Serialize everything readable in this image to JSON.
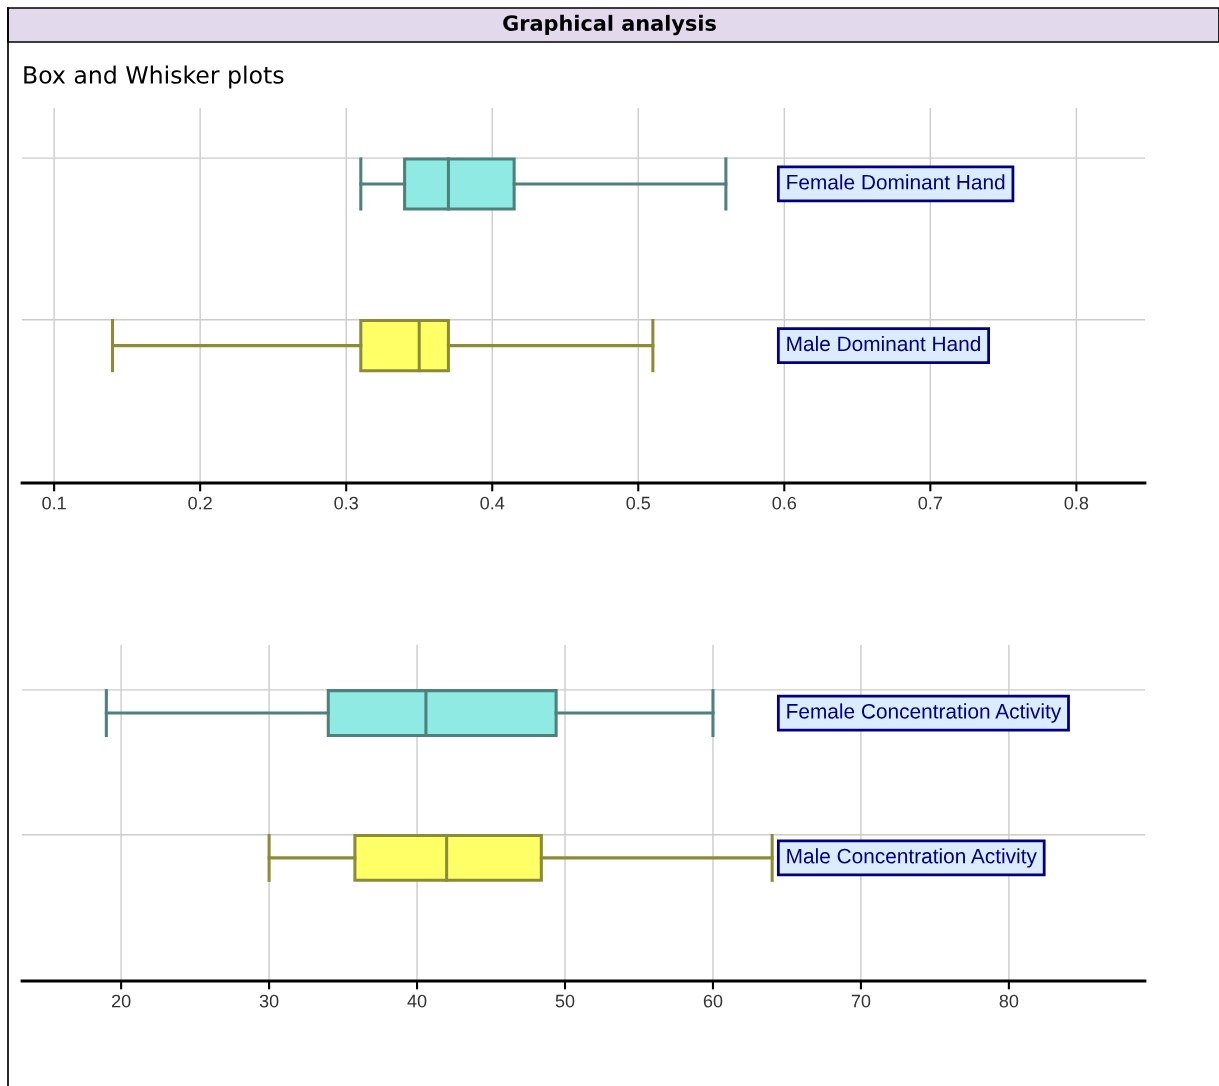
{
  "chart_data": [
    {
      "type": "box",
      "title": "Graphical analysis",
      "subtitle": "Box and Whisker plots",
      "orientation": "horizontal",
      "grid": true,
      "xlim": [
        0.078,
        0.847
      ],
      "xticks": [
        0.1,
        0.2,
        0.3,
        0.4,
        0.5,
        0.6,
        0.7,
        0.8
      ],
      "series": [
        {
          "name": "Female Dominant Hand",
          "color": "#8eeae2",
          "boxes": [
            {
              "low": 0.31,
              "q1": 0.34,
              "median": 0.37,
              "q3": 0.415,
              "high": 0.56
            }
          ]
        },
        {
          "name": "Male Dominant Hand",
          "color": "#ffff66",
          "boxes": [
            {
              "low": 0.14,
              "q1": 0.31,
              "median": 0.35,
              "q3": 0.37,
              "high": 0.51
            }
          ]
        }
      ]
    },
    {
      "type": "box",
      "orientation": "horizontal",
      "grid": true,
      "xlim": [
        13.3,
        89.2
      ],
      "xticks": [
        20,
        30,
        40,
        50,
        60,
        70,
        80
      ],
      "series": [
        {
          "name": "Female Concentration Activity",
          "color": "#8eeae2",
          "boxes": [
            {
              "low": 19,
              "q1": 34,
              "median": 40.6,
              "q3": 49.4,
              "high": 60
            }
          ]
        },
        {
          "name": "Male Concentration Activity",
          "color": "#ffff66",
          "boxes": [
            {
              "low": 30,
              "q1": 35.8,
              "median": 42,
              "q3": 48.4,
              "high": 64
            }
          ]
        }
      ]
    }
  ]
}
